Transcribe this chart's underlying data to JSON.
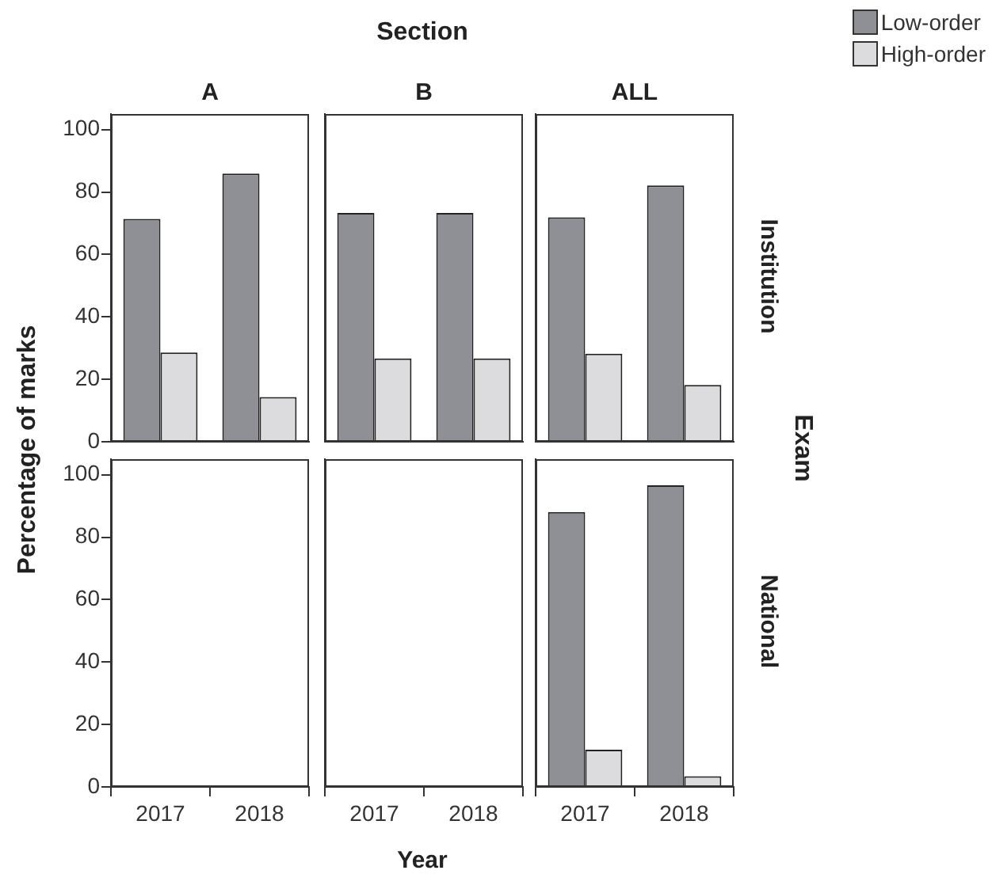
{
  "chart_data": [
    {
      "type": "bar",
      "title": "A",
      "ylabel": "Percentage of marks",
      "categories": [
        "2017",
        "2018"
      ],
      "ylim": [
        0,
        105
      ],
      "yticks": [
        0,
        20,
        40,
        60,
        80,
        100
      ],
      "tick_labels": "y",
      "grid": false,
      "legend": false,
      "series": [
        {
          "color": "#8e9095",
          "values": [
            71.4,
            85.9
          ]
        },
        {
          "color": "#dcdcde",
          "values": [
            28.6,
            14.3
          ]
        }
      ]
    },
    {
      "type": "bar",
      "title": "B",
      "annotations": [
        "Section"
      ],
      "categories": [
        "2017",
        "2018"
      ],
      "ylim": [
        0,
        105
      ],
      "yticks": [
        0,
        20,
        40,
        60,
        80,
        100
      ],
      "tick_labels": false,
      "grid": false,
      "legend": false,
      "series": [
        {
          "color": "#8e9095",
          "values": [
            73.3,
            73.3
          ]
        },
        {
          "color": "#dcdcde",
          "values": [
            26.7,
            26.7
          ]
        }
      ]
    },
    {
      "type": "bar",
      "title": "ALL",
      "y2label": "Institution",
      "categories": [
        "2017",
        "2018"
      ],
      "ylim": [
        0,
        105
      ],
      "yticks": [
        0,
        20,
        40,
        60,
        80,
        100
      ],
      "tick_labels": false,
      "grid": false,
      "legend": "top right",
      "series": [
        {
          "name": "Low-order",
          "color": "#8e9095",
          "values": [
            71.9,
            82.1
          ]
        },
        {
          "name": "High-order",
          "color": "#dcdcde",
          "values": [
            28.2,
            18.2
          ]
        }
      ]
    },
    {
      "type": "bar",
      "categories": [
        "2017",
        "2018"
      ],
      "ylim": [
        0,
        105
      ],
      "yticks": [
        0,
        20,
        40,
        60,
        80,
        100
      ],
      "grid": false,
      "legend": false,
      "series": [
        {
          "color": "#8e9095",
          "values": [
            null,
            null
          ]
        },
        {
          "color": "#dcdcde",
          "values": [
            null,
            null
          ]
        }
      ]
    },
    {
      "type": "bar",
      "xlabel": "Year",
      "categories": [
        "2017",
        "2018"
      ],
      "ylim": [
        0,
        105
      ],
      "yticks": [
        0,
        20,
        40,
        60,
        80,
        100
      ],
      "tick_labels": "x",
      "grid": false,
      "legend": false,
      "series": [
        {
          "color": "#8e9095",
          "values": [
            null,
            null
          ]
        },
        {
          "color": "#dcdcde",
          "values": [
            null,
            null
          ]
        }
      ]
    },
    {
      "type": "bar",
      "y2label": "National",
      "annotations": [
        "Exam"
      ],
      "categories": [
        "2017",
        "2018"
      ],
      "ylim": [
        0,
        105
      ],
      "yticks": [
        0,
        20,
        40,
        60,
        80,
        100
      ],
      "tick_labels": "x",
      "grid": false,
      "legend": false,
      "series": [
        {
          "color": "#8e9095",
          "values": [
            88.1,
            96.6
          ]
        },
        {
          "color": "#dcdcde",
          "values": [
            11.9,
            3.4
          ]
        }
      ]
    }
  ]
}
